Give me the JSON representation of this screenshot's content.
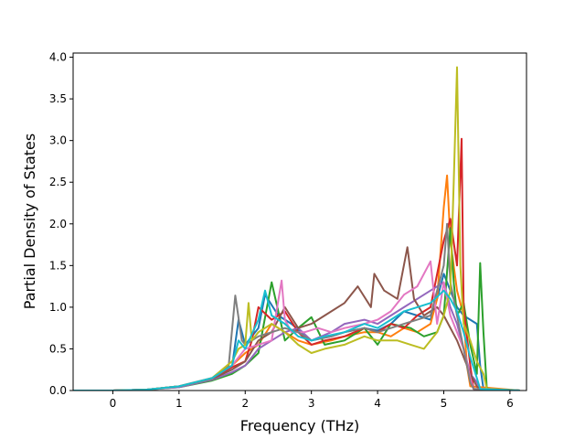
{
  "chart_data": {
    "type": "line",
    "title": "",
    "xlabel": "Frequency (THz)",
    "ylabel": "Partial Density of States",
    "xlim": [
      -0.6,
      6.25
    ],
    "ylim": [
      0,
      4.05
    ],
    "xticks": [
      0,
      1,
      2,
      3,
      4,
      5,
      6
    ],
    "xtick_labels": [
      "0",
      "1",
      "2",
      "3",
      "4",
      "5",
      "6"
    ],
    "yticks": [
      0,
      0.5,
      1.0,
      1.5,
      2.0,
      2.5,
      3.0,
      3.5,
      4.0
    ],
    "ytick_labels": [
      "0.0",
      "0.5",
      "1.0",
      "1.5",
      "2.0",
      "2.5",
      "3.0",
      "3.5",
      "4.0"
    ],
    "grid": false,
    "legend": "none",
    "line_width": 2,
    "series": [
      {
        "color": "#1f77b4",
        "x": [
          -0.6,
          0,
          0.5,
          1,
          1.5,
          1.8,
          1.9,
          2,
          2.2,
          2.3,
          2.5,
          2.7,
          3,
          3.3,
          3.5,
          3.8,
          4,
          4.2,
          4.4,
          4.6,
          4.8,
          4.9,
          5,
          5.1,
          5.2,
          5.3,
          5.4,
          5.5,
          5.55,
          5.6,
          6.15
        ],
        "y": [
          0,
          0,
          0.01,
          0.05,
          0.15,
          0.28,
          0.85,
          0.55,
          0.75,
          1.15,
          0.9,
          0.8,
          0.6,
          0.65,
          0.7,
          0.75,
          0.72,
          0.8,
          0.95,
          0.9,
          0.85,
          1.1,
          1.4,
          1.2,
          1.0,
          0.9,
          0.85,
          0.8,
          0.3,
          0.02,
          0
        ]
      },
      {
        "color": "#ff7f0e",
        "x": [
          -0.6,
          0,
          0.5,
          1,
          1.5,
          1.8,
          2,
          2.2,
          2.4,
          2.6,
          2.8,
          3,
          3.3,
          3.5,
          3.8,
          4,
          4.2,
          4.4,
          4.6,
          4.8,
          4.9,
          5.0,
          5.05,
          5.1,
          5.2,
          5.3,
          5.35,
          5.4,
          6.15
        ],
        "y": [
          0,
          0,
          0.01,
          0.05,
          0.14,
          0.3,
          0.45,
          0.55,
          0.8,
          0.7,
          0.6,
          0.55,
          0.6,
          0.65,
          0.7,
          0.7,
          0.65,
          0.75,
          0.7,
          0.8,
          1.1,
          2.2,
          2.58,
          1.8,
          1.2,
          0.9,
          0.3,
          0.05,
          0
        ]
      },
      {
        "color": "#2ca02c",
        "x": [
          -0.6,
          0,
          0.5,
          1,
          1.5,
          1.8,
          2,
          2.2,
          2.4,
          2.6,
          2.8,
          3,
          3.2,
          3.5,
          3.8,
          4,
          4.2,
          4.5,
          4.7,
          4.9,
          5.0,
          5.1,
          5.15,
          5.2,
          5.3,
          5.4,
          5.5,
          5.55,
          5.6,
          5.65,
          6.15
        ],
        "y": [
          0,
          0,
          0.01,
          0.04,
          0.12,
          0.2,
          0.3,
          0.45,
          1.3,
          0.6,
          0.75,
          0.88,
          0.55,
          0.6,
          0.75,
          0.55,
          0.8,
          0.75,
          0.65,
          0.7,
          0.9,
          1.95,
          1.3,
          0.9,
          1.05,
          0.55,
          0.2,
          1.53,
          0.7,
          0.02,
          0
        ]
      },
      {
        "color": "#d62728",
        "x": [
          -0.6,
          0,
          0.5,
          1,
          1.5,
          1.8,
          2,
          2.1,
          2.2,
          2.4,
          2.6,
          2.8,
          3,
          3.2,
          3.5,
          3.8,
          4,
          4.2,
          4.4,
          4.6,
          4.8,
          5,
          5.1,
          5.2,
          5.27,
          5.3,
          5.4,
          5.45,
          6.15
        ],
        "y": [
          0,
          0,
          0.01,
          0.05,
          0.15,
          0.28,
          0.35,
          0.6,
          1.0,
          0.85,
          0.95,
          0.7,
          0.55,
          0.6,
          0.65,
          0.75,
          0.7,
          0.8,
          0.75,
          0.9,
          1.0,
          1.8,
          2.06,
          1.5,
          3.02,
          1.0,
          0.3,
          0.02,
          0
        ]
      },
      {
        "color": "#9467bd",
        "x": [
          -0.6,
          0,
          0.5,
          1,
          1.5,
          1.8,
          2,
          2.2,
          2.4,
          2.6,
          2.8,
          3,
          3.3,
          3.5,
          3.8,
          4,
          4.2,
          4.4,
          4.6,
          4.8,
          5,
          5.1,
          5.2,
          5.3,
          5.4,
          5.5,
          5.55,
          6.15
        ],
        "y": [
          0,
          0,
          0.01,
          0.04,
          0.13,
          0.22,
          0.3,
          0.5,
          0.6,
          0.7,
          0.75,
          0.6,
          0.7,
          0.8,
          0.85,
          0.8,
          0.9,
          1.0,
          1.1,
          1.2,
          1.3,
          1.0,
          0.8,
          0.5,
          0.2,
          0.1,
          0.02,
          0
        ]
      },
      {
        "color": "#8c564b",
        "x": [
          -0.6,
          0,
          0.5,
          1,
          1.5,
          1.8,
          2,
          2.2,
          2.4,
          2.6,
          2.8,
          3,
          3.2,
          3.5,
          3.7,
          3.9,
          3.95,
          4.1,
          4.3,
          4.45,
          4.55,
          4.7,
          4.9,
          5,
          5.2,
          5.4,
          5.5,
          5.55,
          6.15
        ],
        "y": [
          0,
          0,
          0.01,
          0.05,
          0.14,
          0.25,
          0.35,
          0.6,
          0.7,
          1.0,
          0.75,
          0.8,
          0.9,
          1.05,
          1.25,
          1.0,
          1.4,
          1.2,
          1.1,
          1.72,
          1.1,
          0.9,
          1.0,
          0.9,
          0.6,
          0.2,
          0.05,
          0.01,
          0
        ]
      },
      {
        "color": "#e377c2",
        "x": [
          -0.6,
          0,
          0.5,
          1,
          1.5,
          1.8,
          2,
          2.2,
          2.4,
          2.55,
          2.6,
          2.7,
          2.9,
          3.1,
          3.3,
          3.5,
          3.8,
          4,
          4.2,
          4.4,
          4.6,
          4.8,
          4.9,
          5,
          5.1,
          5.2,
          5.3,
          5.4,
          5.45,
          6.15
        ],
        "y": [
          0,
          0,
          0.01,
          0.05,
          0.15,
          0.3,
          0.5,
          0.55,
          0.6,
          1.32,
          0.85,
          0.7,
          0.7,
          0.75,
          0.7,
          0.75,
          0.8,
          0.85,
          0.95,
          1.15,
          1.25,
          1.55,
          0.8,
          1.3,
          0.9,
          0.7,
          0.5,
          0.15,
          0.02,
          0
        ]
      },
      {
        "color": "#7f7f7f",
        "x": [
          -0.6,
          0,
          0.5,
          1,
          1.5,
          1.75,
          1.85,
          1.95,
          2,
          2.2,
          2.4,
          2.6,
          2.8,
          3,
          3.3,
          3.5,
          3.8,
          4,
          4.2,
          4.4,
          4.6,
          4.8,
          5.0,
          5.05,
          5.1,
          5.2,
          5.3,
          5.4,
          5.45,
          6.15
        ],
        "y": [
          0,
          0,
          0.01,
          0.05,
          0.14,
          0.3,
          1.14,
          0.6,
          0.55,
          0.65,
          0.7,
          0.75,
          0.7,
          0.6,
          0.65,
          0.7,
          0.75,
          0.7,
          0.75,
          0.8,
          0.85,
          0.9,
          1.5,
          2.0,
          1.3,
          0.9,
          0.5,
          0.1,
          0.02,
          0
        ]
      },
      {
        "color": "#bcbd22",
        "x": [
          -0.6,
          0,
          0.5,
          1,
          1.5,
          1.8,
          1.9,
          2,
          2.05,
          2.1,
          2.2,
          2.4,
          2.6,
          2.8,
          3,
          3.2,
          3.5,
          3.8,
          4,
          4.3,
          4.5,
          4.7,
          4.8,
          4.9,
          5,
          5.1,
          5.15,
          5.2,
          5.25,
          5.3,
          5.4,
          5.5,
          5.6,
          5.65,
          6.15
        ],
        "y": [
          0,
          0,
          0.01,
          0.05,
          0.15,
          0.35,
          0.5,
          0.55,
          1.05,
          0.6,
          0.7,
          0.8,
          0.7,
          0.55,
          0.45,
          0.5,
          0.55,
          0.65,
          0.6,
          0.6,
          0.55,
          0.5,
          0.6,
          0.7,
          0.9,
          1.2,
          2.5,
          3.88,
          1.5,
          0.8,
          0.6,
          0.35,
          0.2,
          0.02,
          0
        ]
      },
      {
        "color": "#17becf",
        "x": [
          -0.6,
          0,
          0.5,
          1,
          1.5,
          1.8,
          1.9,
          2,
          2.2,
          2.3,
          2.4,
          2.6,
          2.8,
          3,
          3.2,
          3.5,
          3.8,
          4,
          4.2,
          4.4,
          4.6,
          4.8,
          5,
          5.1,
          5.2,
          5.3,
          5.4,
          5.5,
          5.55,
          6.15
        ],
        "y": [
          0,
          0,
          0.01,
          0.05,
          0.15,
          0.3,
          0.6,
          0.5,
          0.85,
          1.2,
          0.9,
          0.8,
          0.65,
          0.6,
          0.65,
          0.7,
          0.8,
          0.75,
          0.85,
          0.95,
          1.0,
          1.05,
          1.2,
          1.1,
          0.95,
          0.7,
          0.4,
          0.15,
          0.02,
          0
        ]
      }
    ]
  }
}
